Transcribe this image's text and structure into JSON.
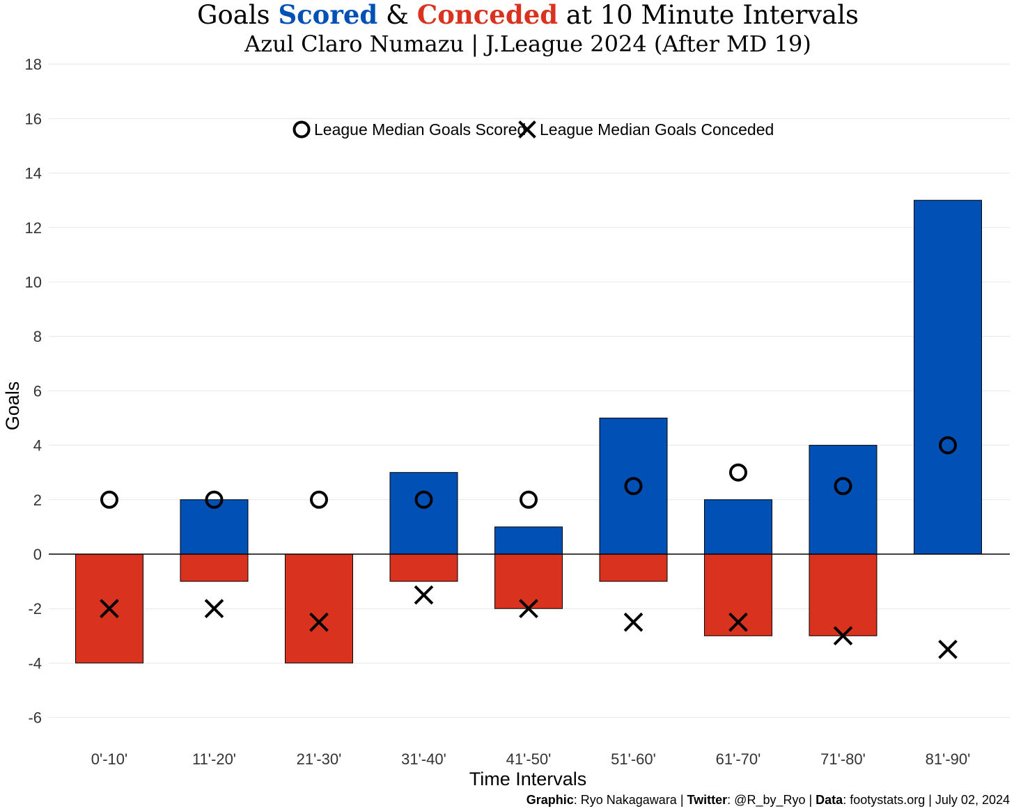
{
  "chart_data": {
    "type": "bar",
    "title": {
      "parts": [
        {
          "text": "Goals ",
          "color": "#000000",
          "bold": false
        },
        {
          "text": "Scored",
          "color": "#0050B5",
          "bold": true
        },
        {
          "text": " & ",
          "color": "#000000",
          "bold": false
        },
        {
          "text": "Conceded",
          "color": "#D93320",
          "bold": true
        },
        {
          "text": " at 10 Minute Intervals",
          "color": "#000000",
          "bold": false
        }
      ]
    },
    "subtitle": "Azul Claro Numazu | J.League 2024 (After MD 19)",
    "xlabel": "Time Intervals",
    "ylabel": "Goals",
    "ylim": [
      -7,
      18
    ],
    "yticks": [
      -6,
      -4,
      -2,
      0,
      2,
      4,
      6,
      8,
      10,
      12,
      14,
      16,
      18
    ],
    "categories": [
      "0'-10'",
      "11'-20'",
      "21'-30'",
      "31'-40'",
      "41'-50'",
      "51'-60'",
      "61'-70'",
      "71'-80'",
      "81'-90'"
    ],
    "series": [
      {
        "name": "Goals Scored",
        "color": "#0050B5",
        "values": [
          0,
          2,
          0,
          3,
          1,
          5,
          2,
          4,
          13
        ]
      },
      {
        "name": "Goals Conceded",
        "color": "#D93320",
        "values": [
          -4,
          -1,
          -4,
          -1,
          -2,
          -1,
          -3,
          -3,
          0
        ]
      },
      {
        "name": "League Median Goals Scored",
        "marker": "circle",
        "values": [
          2,
          2,
          2,
          2,
          2,
          2.5,
          3,
          2.5,
          4
        ]
      },
      {
        "name": "League Median Goals Conceded",
        "marker": "x",
        "values": [
          -2,
          -2,
          -2.5,
          -1.5,
          -2,
          -2.5,
          -2.5,
          -3,
          -3.5
        ]
      }
    ],
    "legend": {
      "position": "top-center",
      "entries": [
        {
          "label": "League Median Goals Scored",
          "marker": "circle"
        },
        {
          "label": "League Median Goals Conceded",
          "marker": "x"
        }
      ]
    },
    "grid": true,
    "caption": {
      "parts": [
        {
          "text": "Graphic",
          "bold": true
        },
        {
          "text": ": Ryo Nakagawara | ",
          "bold": false
        },
        {
          "text": "Twitter",
          "bold": true
        },
        {
          "text": ": @R_by_Ryo | ",
          "bold": false
        },
        {
          "text": "Data",
          "bold": true
        },
        {
          "text": ": footystats.org | July 02, 2024",
          "bold": false
        }
      ]
    }
  }
}
